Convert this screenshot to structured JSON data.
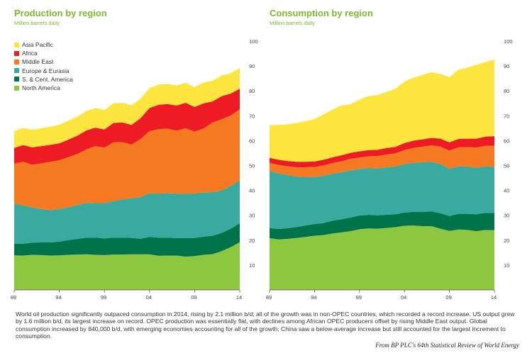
{
  "chart_data": [
    {
      "type": "area",
      "stacked": true,
      "title": "Production by region",
      "subtitle": "Million barrels daily",
      "x": [
        1989,
        1990,
        1991,
        1992,
        1993,
        1994,
        1995,
        1996,
        1997,
        1998,
        1999,
        2000,
        2001,
        2002,
        2003,
        2004,
        2005,
        2006,
        2007,
        2008,
        2009,
        2010,
        2011,
        2012,
        2013,
        2014
      ],
      "xticks": [
        "89",
        "94",
        "99",
        "04",
        "09",
        "14"
      ],
      "ylim": [
        0,
        100
      ],
      "yticks": [
        10,
        20,
        30,
        40,
        50,
        60,
        70,
        80,
        90,
        100
      ],
      "series": [
        {
          "name": "North America",
          "color": "#8dc63f",
          "values": [
            13.9,
            13.8,
            14.1,
            14.0,
            13.8,
            13.9,
            14.1,
            14.2,
            14.3,
            14.1,
            14.0,
            14.2,
            14.2,
            14.3,
            14.3,
            14.3,
            13.7,
            13.8,
            13.8,
            13.4,
            13.6,
            14.1,
            14.4,
            15.6,
            17.2,
            19.2
          ]
        },
        {
          "name": "S. & Cent. America",
          "color": "#00734a",
          "values": [
            4.6,
            4.8,
            4.9,
            5.1,
            5.3,
            5.5,
            5.9,
            6.3,
            6.7,
            6.9,
            6.7,
            6.8,
            6.8,
            6.6,
            6.3,
            7.0,
            7.3,
            7.2,
            7.0,
            7.4,
            7.3,
            7.3,
            7.4,
            7.3,
            7.4,
            7.6
          ]
        },
        {
          "name": "Europe & Eurasia",
          "color": "#3aa99f",
          "values": [
            16.2,
            15.4,
            14.2,
            13.4,
            13.0,
            13.1,
            13.2,
            13.6,
            14.0,
            13.9,
            14.2,
            14.7,
            15.4,
            15.9,
            16.7,
            17.5,
            17.7,
            17.9,
            17.9,
            17.8,
            17.9,
            17.8,
            17.5,
            17.1,
            17.2,
            17.2
          ]
        },
        {
          "name": "Middle East",
          "color": "#f47920",
          "values": [
            16.1,
            17.5,
            17.1,
            18.4,
            19.4,
            19.6,
            20.2,
            20.5,
            21.5,
            22.9,
            22.3,
            23.6,
            23.0,
            21.6,
            23.3,
            25.0,
            25.9,
            25.9,
            25.3,
            26.4,
            24.8,
            25.7,
            28.0,
            28.6,
            28.3,
            28.6
          ]
        },
        {
          "name": "Africa",
          "color": "#ed1c24",
          "values": [
            6.3,
            6.7,
            7.0,
            6.9,
            6.8,
            6.8,
            7.0,
            7.4,
            7.6,
            7.4,
            7.3,
            7.8,
            7.9,
            7.9,
            8.4,
            9.3,
            9.8,
            9.9,
            10.1,
            10.2,
            9.9,
            10.1,
            8.5,
            9.3,
            8.8,
            8.3
          ]
        },
        {
          "name": "Asia Pacific",
          "color": "#fde540",
          "values": [
            6.8,
            6.9,
            7.1,
            7.2,
            7.3,
            7.5,
            7.6,
            7.7,
            7.8,
            7.9,
            7.8,
            7.9,
            7.9,
            7.9,
            7.8,
            8.0,
            8.1,
            8.1,
            8.1,
            8.1,
            8.0,
            8.4,
            8.3,
            8.3,
            8.2,
            8.3
          ]
        }
      ],
      "legend": [
        "Asia Pacific",
        "Africa",
        "Middle East",
        "Europe & Eurasia",
        "S. & Cent. America",
        "North America"
      ]
    },
    {
      "type": "area",
      "stacked": true,
      "title": "Consumption by region",
      "subtitle": "Million barrels daily",
      "x": [
        1989,
        1990,
        1991,
        1992,
        1993,
        1994,
        1995,
        1996,
        1997,
        1998,
        1999,
        2000,
        2001,
        2002,
        2003,
        2004,
        2005,
        2006,
        2007,
        2008,
        2009,
        2010,
        2011,
        2012,
        2013,
        2014
      ],
      "xticks": [
        "89",
        "94",
        "99",
        "04",
        "09",
        "14"
      ],
      "ylim": [
        0,
        100
      ],
      "yticks": [
        10,
        20,
        30,
        40,
        50,
        60,
        70,
        80,
        90,
        100
      ],
      "series": [
        {
          "name": "North America",
          "color": "#8dc63f",
          "values": [
            20.8,
            20.3,
            20.5,
            20.9,
            21.3,
            21.8,
            22.0,
            22.7,
            23.1,
            23.6,
            24.4,
            24.7,
            24.6,
            24.9,
            25.2,
            25.8,
            25.9,
            25.6,
            25.6,
            24.6,
            23.7,
            24.3,
            24.1,
            23.6,
            24.1,
            24.0
          ]
        },
        {
          "name": "S. & Cent. America",
          "color": "#00734a",
          "values": [
            4.1,
            4.2,
            4.3,
            4.4,
            4.6,
            4.7,
            4.9,
            5.1,
            5.3,
            5.5,
            5.5,
            5.5,
            5.4,
            5.3,
            5.2,
            5.3,
            5.5,
            5.7,
            6.0,
            6.2,
            6.0,
            6.3,
            6.5,
            6.8,
            6.9,
            6.9
          ]
        },
        {
          "name": "Europe & Eurasia",
          "color": "#3aa99f",
          "values": [
            23.0,
            22.3,
            21.4,
            20.3,
            19.5,
            18.9,
            19.0,
            18.9,
            18.9,
            19.0,
            18.7,
            18.8,
            18.9,
            19.1,
            19.2,
            19.5,
            19.7,
            20.0,
            19.9,
            19.8,
            19.0,
            19.1,
            19.0,
            18.7,
            18.6,
            18.6
          ]
        },
        {
          "name": "Middle East",
          "color": "#f47920",
          "values": [
            3.2,
            3.4,
            3.5,
            3.7,
            3.9,
            4.0,
            4.1,
            4.3,
            4.4,
            4.6,
            4.6,
            4.7,
            4.9,
            5.1,
            5.3,
            5.6,
            6.0,
            6.3,
            6.6,
            7.0,
            7.3,
            7.6,
            7.8,
            8.1,
            8.3,
            8.5
          ]
        },
        {
          "name": "Africa",
          "color": "#ed1c24",
          "values": [
            2.0,
            2.1,
            2.1,
            2.2,
            2.2,
            2.2,
            2.3,
            2.3,
            2.4,
            2.4,
            2.5,
            2.5,
            2.5,
            2.6,
            2.6,
            2.8,
            2.9,
            2.9,
            3.0,
            3.2,
            3.3,
            3.4,
            3.4,
            3.6,
            3.7,
            3.8
          ]
        },
        {
          "name": "Asia Pacific",
          "color": "#fde540",
          "values": [
            13.1,
            14.0,
            14.8,
            15.6,
            16.3,
            17.1,
            18.3,
            19.2,
            20.0,
            19.5,
            20.8,
            21.7,
            22.0,
            22.6,
            23.3,
            24.8,
            25.3,
            25.9,
            26.4,
            26.0,
            26.2,
            27.8,
            28.6,
            29.7,
            30.0,
            30.8
          ]
        }
      ]
    }
  ],
  "caption": "World oil production significantly outpaced consumption in 2014, rising by 2.1 million b/d; all of the growth was in non-OPEC countries, which recorded a record increase. US output grew by 1.6 million b/d, its largest increase on record. OPEC production was essentially flat, with declines among African OPEC producers offset by rising Middle East output. Global consumption increased by 840,000 b/d, with emerging economies accounting for all of the growth; China saw a below-average increase but still accounted for the largest increment to consumption.",
  "source": "From BP PLC's 64th Statistical Review of World Energy"
}
